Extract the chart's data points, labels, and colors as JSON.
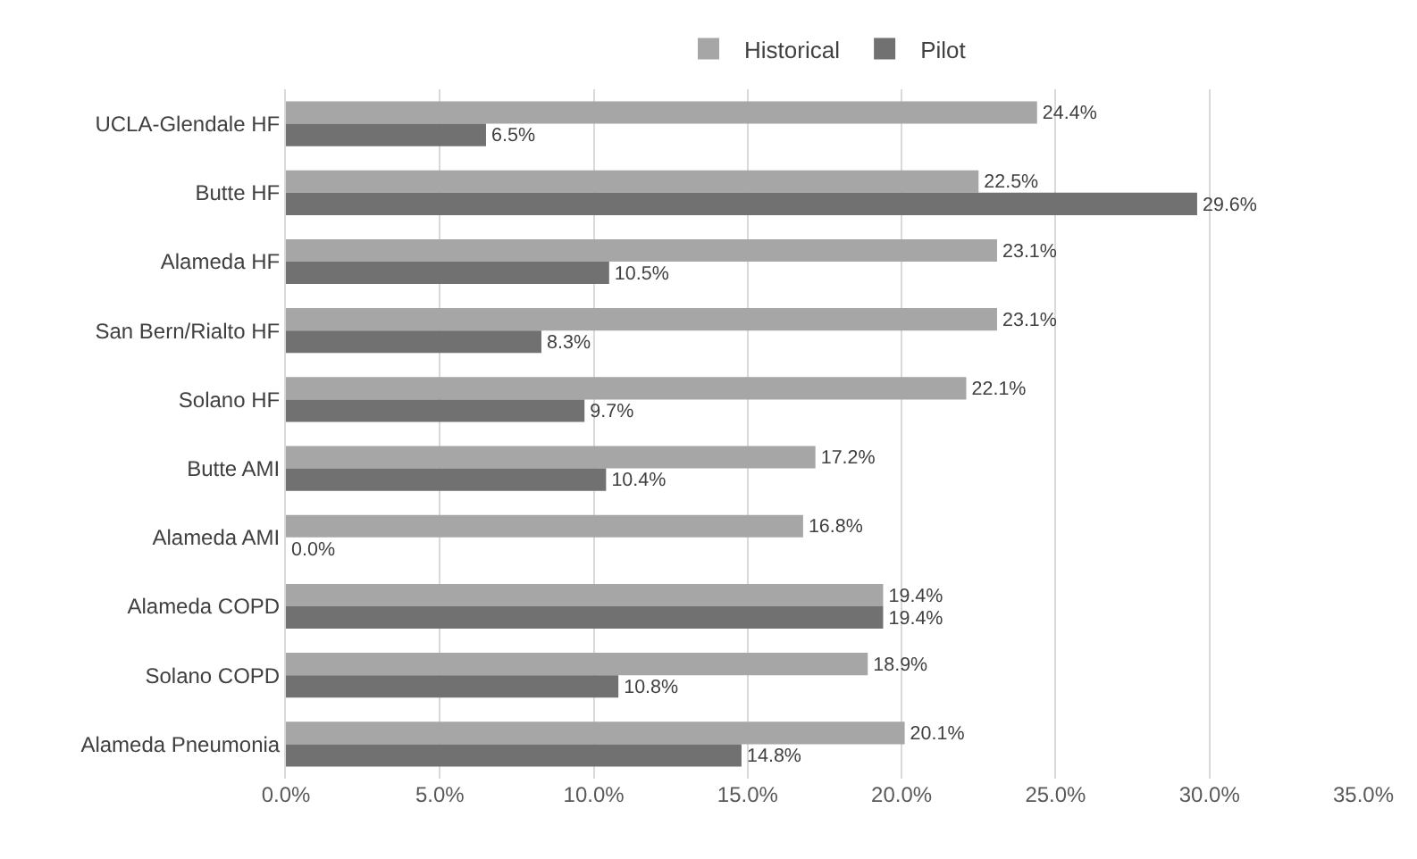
{
  "chart_data": {
    "type": "bar",
    "orientation": "horizontal",
    "categories": [
      "UCLA-Glendale HF",
      "Butte HF",
      "Alameda HF",
      "San Bern/Rialto HF",
      "Solano HF",
      "Butte AMI",
      "Alameda AMI",
      "Alameda COPD",
      "Solano COPD",
      "Alameda Pneumonia"
    ],
    "series": [
      {
        "name": "Historical",
        "color": "#a6a6a6",
        "values": [
          24.4,
          22.5,
          23.1,
          23.1,
          22.1,
          17.2,
          16.8,
          19.4,
          18.9,
          20.1
        ],
        "value_labels": [
          "24.4%",
          "22.5%",
          "23.1%",
          "23.1%",
          "22.1%",
          "17.2%",
          "16.8%",
          "19.4%",
          "18.9%",
          "20.1%"
        ]
      },
      {
        "name": "Pilot",
        "color": "#717171",
        "values": [
          6.5,
          29.6,
          10.5,
          8.3,
          9.7,
          10.4,
          0.0,
          19.4,
          10.8,
          14.8
        ],
        "value_labels": [
          "6.5%",
          "29.6%",
          "10.5%",
          "8.3%",
          "9.7%",
          "10.4%",
          "0.0%",
          "19.4%",
          "10.8%",
          "14.8%"
        ]
      }
    ],
    "xlim": [
      0,
      35
    ],
    "xticks": [
      {
        "value": 0,
        "label": "0.0%"
      },
      {
        "value": 5,
        "label": "5.0%"
      },
      {
        "value": 10,
        "label": "10.0%"
      },
      {
        "value": 15,
        "label": "15.0%"
      },
      {
        "value": 20,
        "label": "20.0%"
      },
      {
        "value": 25,
        "label": "25.0%"
      },
      {
        "value": 30,
        "label": "30.0%"
      },
      {
        "value": 35,
        "label": "35.0%"
      }
    ],
    "grid": "x",
    "legend": "top"
  }
}
